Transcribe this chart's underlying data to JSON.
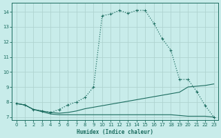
{
  "xlabel": "Humidex (Indice chaleur)",
  "background_color": "#c8ecea",
  "grid_color": "#afd4d0",
  "line_color": "#1a6b5e",
  "xlim": [
    -0.5,
    23.5
  ],
  "ylim": [
    6.8,
    14.6
  ],
  "yticks": [
    7,
    8,
    9,
    10,
    11,
    12,
    13,
    14
  ],
  "xticks": [
    0,
    1,
    2,
    3,
    4,
    5,
    6,
    7,
    8,
    9,
    10,
    11,
    12,
    13,
    14,
    15,
    16,
    17,
    18,
    19,
    20,
    21,
    22,
    23
  ],
  "curve_x": [
    0,
    1,
    2,
    3,
    4,
    5,
    6,
    7,
    8,
    9,
    10,
    11,
    12,
    13,
    14,
    15,
    16,
    17,
    18,
    19,
    20,
    21,
    22,
    23
  ],
  "curve_y": [
    7.9,
    7.8,
    7.5,
    7.4,
    7.3,
    7.5,
    7.8,
    8.0,
    8.3,
    9.0,
    13.75,
    13.85,
    14.1,
    13.9,
    14.1,
    14.1,
    13.25,
    12.2,
    11.45,
    9.5,
    9.5,
    8.7,
    7.75,
    7.0
  ],
  "diag_x": [
    0,
    1,
    2,
    3,
    4,
    5,
    6,
    7,
    8,
    9,
    10,
    11,
    12,
    13,
    14,
    15,
    16,
    17,
    18,
    19,
    20,
    21,
    22,
    23
  ],
  "diag_y": [
    7.9,
    7.8,
    7.5,
    7.4,
    7.3,
    7.25,
    7.3,
    7.4,
    7.55,
    7.65,
    7.75,
    7.85,
    7.95,
    8.05,
    8.15,
    8.25,
    8.35,
    8.45,
    8.55,
    8.65,
    9.0,
    9.05,
    9.1,
    9.2
  ],
  "flat_x": [
    0,
    1,
    2,
    3,
    4,
    5,
    6,
    7,
    8,
    9,
    10,
    11,
    12,
    13,
    14,
    15,
    16,
    17,
    18,
    19,
    20,
    21,
    22,
    23
  ],
  "flat_y": [
    7.9,
    7.8,
    7.5,
    7.35,
    7.2,
    7.15,
    7.15,
    7.15,
    7.15,
    7.15,
    7.15,
    7.15,
    7.15,
    7.15,
    7.15,
    7.15,
    7.15,
    7.15,
    7.15,
    7.1,
    7.05,
    7.05,
    7.05,
    7.0
  ]
}
